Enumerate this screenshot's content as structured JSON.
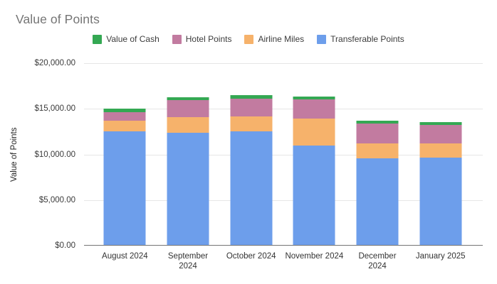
{
  "chart_data": {
    "type": "bar",
    "stacked": true,
    "title": "Value of Points",
    "xlabel": "",
    "ylabel": "Value of Points",
    "ylim": [
      0,
      20000
    ],
    "grid": true,
    "legend_position": "top-center",
    "background_color": "#ffffff",
    "gridline_color": "#e6e6e6",
    "axis_line_color": "#757575",
    "title_color": "#757575",
    "y_ticks_top_to_bottom": [
      "$20,000.00",
      "$15,000.00",
      "$10,000.00",
      "$5,000.00",
      "$0.00"
    ],
    "categories": [
      "August 2024",
      "September 2024",
      "October 2024",
      "November 2024",
      "December 2024",
      "January 2025"
    ],
    "category_label_lines": [
      [
        "August 2024"
      ],
      [
        "September",
        "2024"
      ],
      [
        "October 2024"
      ],
      [
        "November 2024"
      ],
      [
        "December",
        "2024"
      ],
      [
        "January 2025"
      ]
    ],
    "series": [
      {
        "name": "Transferable Points",
        "color": "#6d9eeb",
        "values": [
          12500,
          12350,
          12500,
          11000,
          9600,
          9650
        ]
      },
      {
        "name": "Airline Miles",
        "color": "#f6b26b",
        "values": [
          1200,
          1700,
          1700,
          2900,
          1620,
          1550
        ]
      },
      {
        "name": "Hotel Points",
        "color": "#c27ba0",
        "values": [
          950,
          1900,
          1900,
          2150,
          2140,
          2050
        ]
      },
      {
        "name": "Value of Cash",
        "color": "#34a853",
        "values": [
          380,
          350,
          380,
          300,
          360,
          280
        ]
      }
    ],
    "legend_order": [
      "Value of Cash",
      "Hotel Points",
      "Airline Miles",
      "Transferable Points"
    ],
    "approx_totals": [
      15030,
      16300,
      16480,
      16350,
      13720,
      13530
    ]
  }
}
